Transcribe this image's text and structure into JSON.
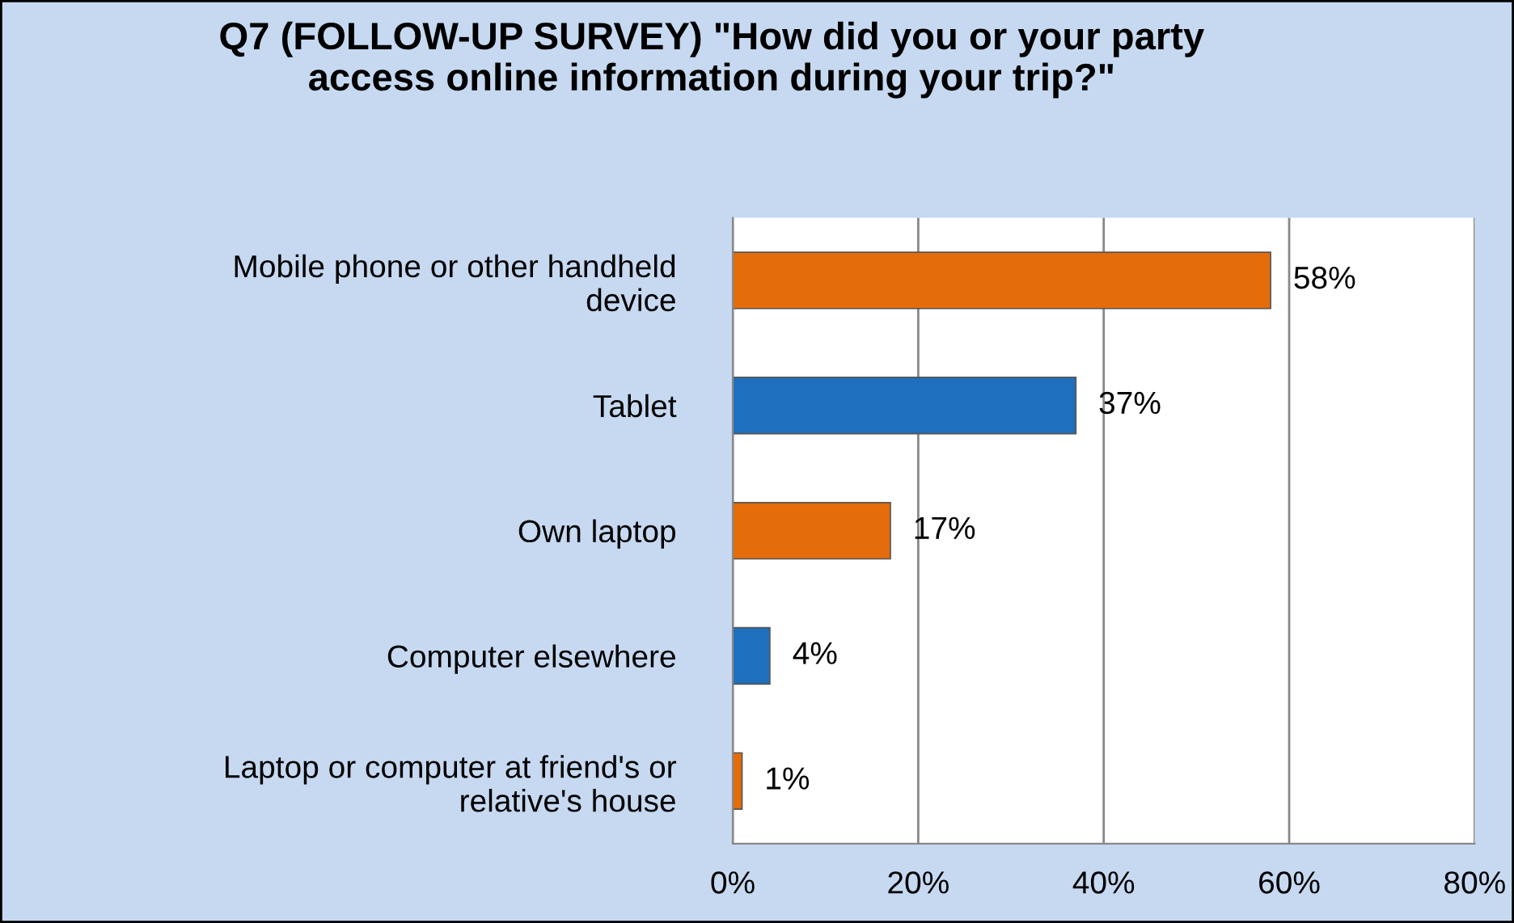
{
  "chart_data": {
    "type": "bar",
    "orientation": "horizontal",
    "title": "Q7 (FOLLOW-UP SURVEY) \"How did you or your party\naccess online information during your trip?\"",
    "categories": [
      "Mobile phone or other handheld\ndevice",
      "Tablet",
      "Own laptop",
      "Computer elsewhere",
      "Laptop or computer at friend's or\nrelative's house"
    ],
    "values": [
      58,
      37,
      17,
      4,
      1
    ],
    "colors": [
      "#e46c0a",
      "#1f6fbf",
      "#e46c0a",
      "#1f6fbf",
      "#e46c0a"
    ],
    "value_labels": [
      "58%",
      "37%",
      "17%",
      "4%",
      "1%"
    ],
    "xlim": [
      0,
      80
    ],
    "xticks": [
      {
        "value": 0,
        "label": "0%"
      },
      {
        "value": 20,
        "label": "20%"
      },
      {
        "value": 40,
        "label": "40%"
      },
      {
        "value": 60,
        "label": "60%"
      },
      {
        "value": 80,
        "label": "80%"
      }
    ],
    "grid": "x",
    "legend": false
  }
}
